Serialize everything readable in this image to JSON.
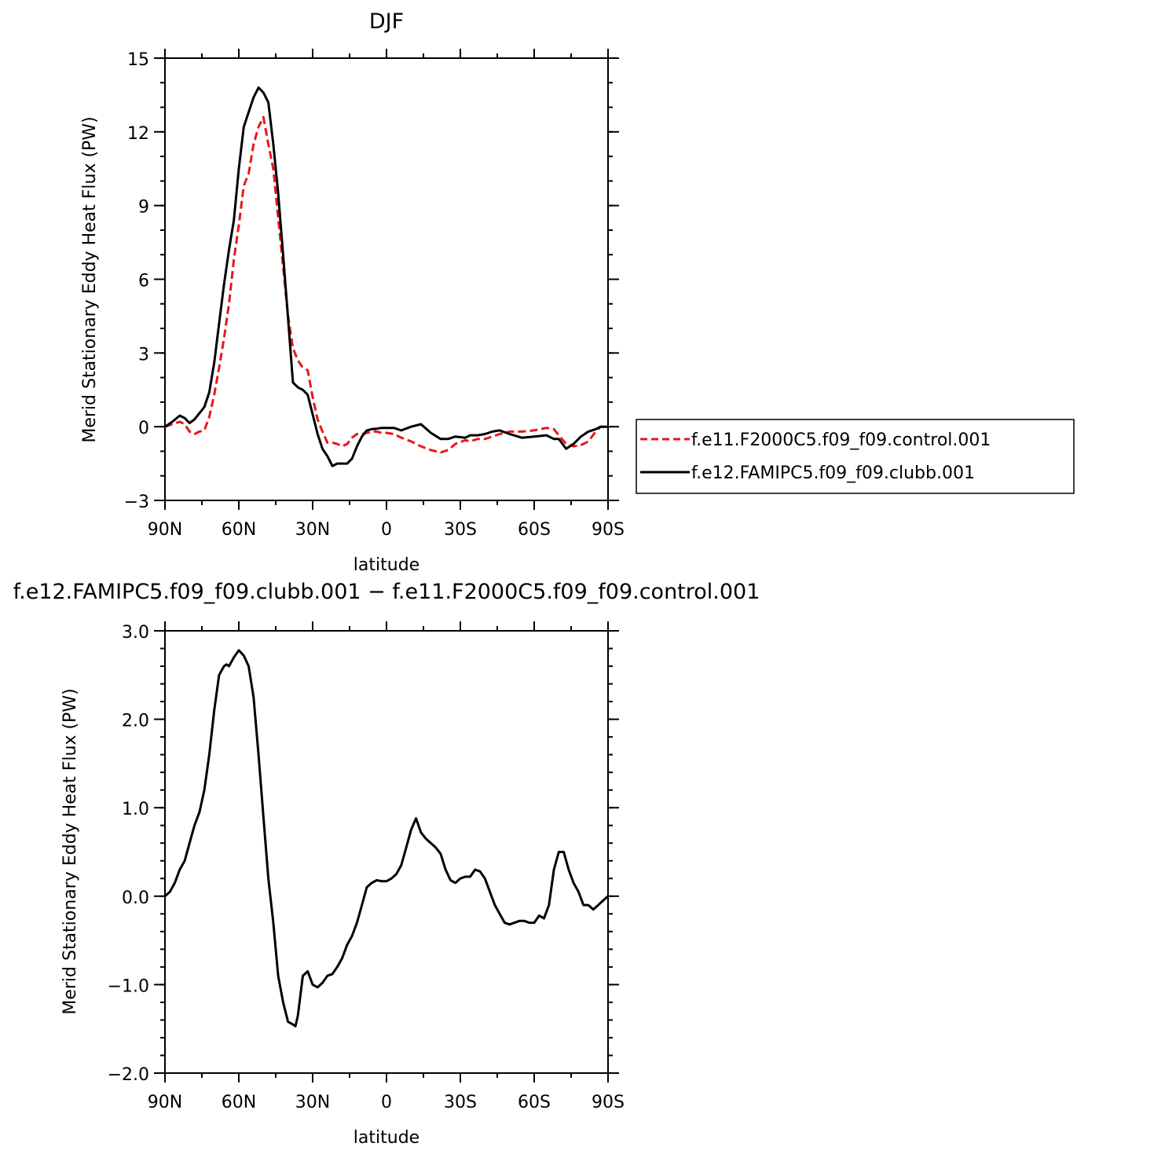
{
  "colors": {
    "control": "#e8181a",
    "clubb": "#000000"
  },
  "chart_data": [
    {
      "type": "line",
      "title": "DJF",
      "xlabel": "latitude",
      "ylabel": "Merid Stationary Eddy Heat Flux (PW)",
      "xlim": [
        90,
        -90
      ],
      "ylim": [
        -3,
        15
      ],
      "x_tick_values": [
        90,
        60,
        30,
        0,
        -30,
        -60,
        -90
      ],
      "x_tick_labels": [
        "90N",
        "60N",
        "30N",
        "0",
        "30S",
        "60S",
        "90S"
      ],
      "y_tick_values": [
        -3,
        0,
        3,
        6,
        9,
        12,
        15
      ],
      "y_tick_labels": [
        "−3",
        "0",
        "3",
        "6",
        "9",
        "12",
        "15"
      ],
      "legend_position": "right",
      "series": [
        {
          "name": "f.e11.F2000C5.f09_f09.control.001",
          "style": "dashed",
          "color": "#e8181a",
          "points": [
            [
              90,
              0
            ],
            [
              87,
              0.1
            ],
            [
              84,
              0.2
            ],
            [
              82,
              0.1
            ],
            [
              80,
              -0.2
            ],
            [
              78,
              -0.3
            ],
            [
              76,
              -0.2
            ],
            [
              74,
              -0.15
            ],
            [
              72,
              0.4
            ],
            [
              70,
              1.3
            ],
            [
              68,
              2.4
            ],
            [
              66,
              3.6
            ],
            [
              64,
              5.0
            ],
            [
              62,
              6.8
            ],
            [
              60,
              8.2
            ],
            [
              58,
              9.8
            ],
            [
              56,
              10.3
            ],
            [
              54,
              11.5
            ],
            [
              52,
              12.2
            ],
            [
              50,
              12.6
            ],
            [
              48,
              11.5
            ],
            [
              46,
              10.5
            ],
            [
              44,
              8.5
            ],
            [
              42,
              6.5
            ],
            [
              40,
              4.5
            ],
            [
              38,
              3.2
            ],
            [
              36,
              2.7
            ],
            [
              34,
              2.4
            ],
            [
              32,
              2.3
            ],
            [
              30,
              1.2
            ],
            [
              28,
              0.3
            ],
            [
              26,
              -0.2
            ],
            [
              24,
              -0.65
            ],
            [
              22,
              -0.65
            ],
            [
              20,
              -0.7
            ],
            [
              18,
              -0.8
            ],
            [
              16,
              -0.7
            ],
            [
              14,
              -0.45
            ],
            [
              12,
              -0.3
            ],
            [
              10,
              -0.3
            ],
            [
              8,
              -0.25
            ],
            [
              6,
              -0.2
            ],
            [
              4,
              -0.2
            ],
            [
              2,
              -0.25
            ],
            [
              0,
              -0.25
            ],
            [
              -3,
              -0.3
            ],
            [
              -6,
              -0.45
            ],
            [
              -10,
              -0.6
            ],
            [
              -14,
              -0.8
            ],
            [
              -18,
              -0.95
            ],
            [
              -22,
              -1.05
            ],
            [
              -25,
              -0.95
            ],
            [
              -28,
              -0.7
            ],
            [
              -32,
              -0.55
            ],
            [
              -34,
              -0.6
            ],
            [
              -37,
              -0.5
            ],
            [
              -40,
              -0.5
            ],
            [
              -43,
              -0.4
            ],
            [
              -46,
              -0.3
            ],
            [
              -50,
              -0.2
            ],
            [
              -55,
              -0.2
            ],
            [
              -60,
              -0.15
            ],
            [
              -65,
              -0.05
            ],
            [
              -68,
              -0.1
            ],
            [
              -70,
              -0.35
            ],
            [
              -73,
              -0.7
            ],
            [
              -76,
              -0.8
            ],
            [
              -79,
              -0.75
            ],
            [
              -82,
              -0.6
            ],
            [
              -85,
              -0.2
            ],
            [
              -87,
              0
            ],
            [
              -90,
              0
            ]
          ]
        },
        {
          "name": "f.e12.FAMIPC5.f09_f09.clubb.001",
          "style": "solid",
          "color": "#000000",
          "points": [
            [
              90,
              0
            ],
            [
              87,
              0.2
            ],
            [
              84,
              0.45
            ],
            [
              82,
              0.35
            ],
            [
              80,
              0.15
            ],
            [
              78,
              0.3
            ],
            [
              76,
              0.55
            ],
            [
              74,
              0.8
            ],
            [
              72,
              1.4
            ],
            [
              70,
              2.6
            ],
            [
              68,
              4.2
            ],
            [
              66,
              5.8
            ],
            [
              64,
              7.2
            ],
            [
              62,
              8.4
            ],
            [
              60,
              10.5
            ],
            [
              58,
              12.2
            ],
            [
              56,
              12.8
            ],
            [
              54,
              13.4
            ],
            [
              52,
              13.8
            ],
            [
              50,
              13.6
            ],
            [
              48,
              13.2
            ],
            [
              46,
              11.5
            ],
            [
              44,
              9.5
            ],
            [
              42,
              7.0
            ],
            [
              40,
              4.4
            ],
            [
              38,
              1.8
            ],
            [
              36,
              1.6
            ],
            [
              34,
              1.5
            ],
            [
              32,
              1.3
            ],
            [
              30,
              0.5
            ],
            [
              28,
              -0.3
            ],
            [
              26,
              -0.9
            ],
            [
              24,
              -1.2
            ],
            [
              22,
              -1.6
            ],
            [
              20,
              -1.5
            ],
            [
              18,
              -1.5
            ],
            [
              16,
              -1.5
            ],
            [
              14,
              -1.3
            ],
            [
              12,
              -0.8
            ],
            [
              10,
              -0.4
            ],
            [
              8,
              -0.15
            ],
            [
              6,
              -0.1
            ],
            [
              4,
              -0.08
            ],
            [
              2,
              -0.05
            ],
            [
              0,
              -0.05
            ],
            [
              -3,
              -0.05
            ],
            [
              -6,
              -0.15
            ],
            [
              -10,
              0.0
            ],
            [
              -14,
              0.1
            ],
            [
              -18,
              -0.25
            ],
            [
              -22,
              -0.5
            ],
            [
              -25,
              -0.5
            ],
            [
              -28,
              -0.4
            ],
            [
              -32,
              -0.45
            ],
            [
              -34,
              -0.35
            ],
            [
              -37,
              -0.35
            ],
            [
              -40,
              -0.3
            ],
            [
              -43,
              -0.2
            ],
            [
              -46,
              -0.15
            ],
            [
              -50,
              -0.3
            ],
            [
              -55,
              -0.45
            ],
            [
              -60,
              -0.4
            ],
            [
              -65,
              -0.35
            ],
            [
              -68,
              -0.5
            ],
            [
              -70,
              -0.5
            ],
            [
              -73,
              -0.9
            ],
            [
              -76,
              -0.7
            ],
            [
              -79,
              -0.4
            ],
            [
              -82,
              -0.2
            ],
            [
              -85,
              -0.1
            ],
            [
              -87,
              0
            ],
            [
              -90,
              0
            ]
          ]
        }
      ]
    },
    {
      "type": "line",
      "title": "f.e12.FAMIPC5.f09_f09.clubb.001 − f.e11.F2000C5.f09_f09.control.001",
      "xlabel": "latitude",
      "ylabel": "Merid Stationary Eddy Heat Flux (PW)",
      "xlim": [
        90,
        -90
      ],
      "ylim": [
        -2.0,
        3.0
      ],
      "x_tick_values": [
        90,
        60,
        30,
        0,
        -30,
        -60,
        -90
      ],
      "x_tick_labels": [
        "90N",
        "60N",
        "30N",
        "0",
        "30S",
        "60S",
        "90S"
      ],
      "y_tick_values": [
        -2.0,
        -1.0,
        0.0,
        1.0,
        2.0,
        3.0
      ],
      "y_tick_labels": [
        "−2.0",
        "−1.0",
        "0.0",
        "1.0",
        "2.0",
        "3.0"
      ],
      "series": [
        {
          "name": "",
          "style": "solid",
          "color": "#000000",
          "points": [
            [
              90,
              0
            ],
            [
              88,
              0.05
            ],
            [
              86,
              0.15
            ],
            [
              84,
              0.3
            ],
            [
              82,
              0.4
            ],
            [
              80,
              0.6
            ],
            [
              78,
              0.8
            ],
            [
              76,
              0.95
            ],
            [
              74,
              1.2
            ],
            [
              72,
              1.6
            ],
            [
              70,
              2.1
            ],
            [
              68,
              2.5
            ],
            [
              66,
              2.6
            ],
            [
              65,
              2.62
            ],
            [
              64,
              2.6
            ],
            [
              62,
              2.7
            ],
            [
              60,
              2.78
            ],
            [
              58,
              2.72
            ],
            [
              56,
              2.6
            ],
            [
              54,
              2.25
            ],
            [
              52,
              1.6
            ],
            [
              50,
              0.9
            ],
            [
              48,
              0.2
            ],
            [
              46,
              -0.3
            ],
            [
              44,
              -0.9
            ],
            [
              42,
              -1.2
            ],
            [
              40,
              -1.42
            ],
            [
              38,
              -1.45
            ],
            [
              37,
              -1.47
            ],
            [
              36,
              -1.35
            ],
            [
              34,
              -0.9
            ],
            [
              32,
              -0.85
            ],
            [
              30,
              -1.0
            ],
            [
              28,
              -1.03
            ],
            [
              26,
              -0.98
            ],
            [
              24,
              -0.9
            ],
            [
              22,
              -0.88
            ],
            [
              20,
              -0.8
            ],
            [
              18,
              -0.7
            ],
            [
              16,
              -0.55
            ],
            [
              14,
              -0.45
            ],
            [
              12,
              -0.3
            ],
            [
              10,
              -0.1
            ],
            [
              8,
              0.1
            ],
            [
              6,
              0.15
            ],
            [
              4,
              0.18
            ],
            [
              2,
              0.17
            ],
            [
              0,
              0.17
            ],
            [
              -2,
              0.2
            ],
            [
              -4,
              0.25
            ],
            [
              -6,
              0.35
            ],
            [
              -8,
              0.55
            ],
            [
              -10,
              0.75
            ],
            [
              -12,
              0.88
            ],
            [
              -14,
              0.72
            ],
            [
              -16,
              0.65
            ],
            [
              -18,
              0.6
            ],
            [
              -20,
              0.55
            ],
            [
              -22,
              0.48
            ],
            [
              -24,
              0.3
            ],
            [
              -26,
              0.18
            ],
            [
              -28,
              0.15
            ],
            [
              -30,
              0.2
            ],
            [
              -32,
              0.22
            ],
            [
              -34,
              0.22
            ],
            [
              -36,
              0.3
            ],
            [
              -38,
              0.28
            ],
            [
              -40,
              0.2
            ],
            [
              -42,
              0.05
            ],
            [
              -44,
              -0.1
            ],
            [
              -46,
              -0.2
            ],
            [
              -48,
              -0.3
            ],
            [
              -50,
              -0.32
            ],
            [
              -52,
              -0.3
            ],
            [
              -54,
              -0.28
            ],
            [
              -56,
              -0.28
            ],
            [
              -58,
              -0.3
            ],
            [
              -60,
              -0.3
            ],
            [
              -62,
              -0.22
            ],
            [
              -64,
              -0.25
            ],
            [
              -66,
              -0.1
            ],
            [
              -68,
              0.3
            ],
            [
              -70,
              0.5
            ],
            [
              -72,
              0.5
            ],
            [
              -74,
              0.3
            ],
            [
              -76,
              0.15
            ],
            [
              -78,
              0.05
            ],
            [
              -80,
              -0.1
            ],
            [
              -82,
              -0.1
            ],
            [
              -84,
              -0.15
            ],
            [
              -86,
              -0.1
            ],
            [
              -88,
              -0.05
            ],
            [
              -90,
              0
            ]
          ]
        }
      ]
    }
  ]
}
